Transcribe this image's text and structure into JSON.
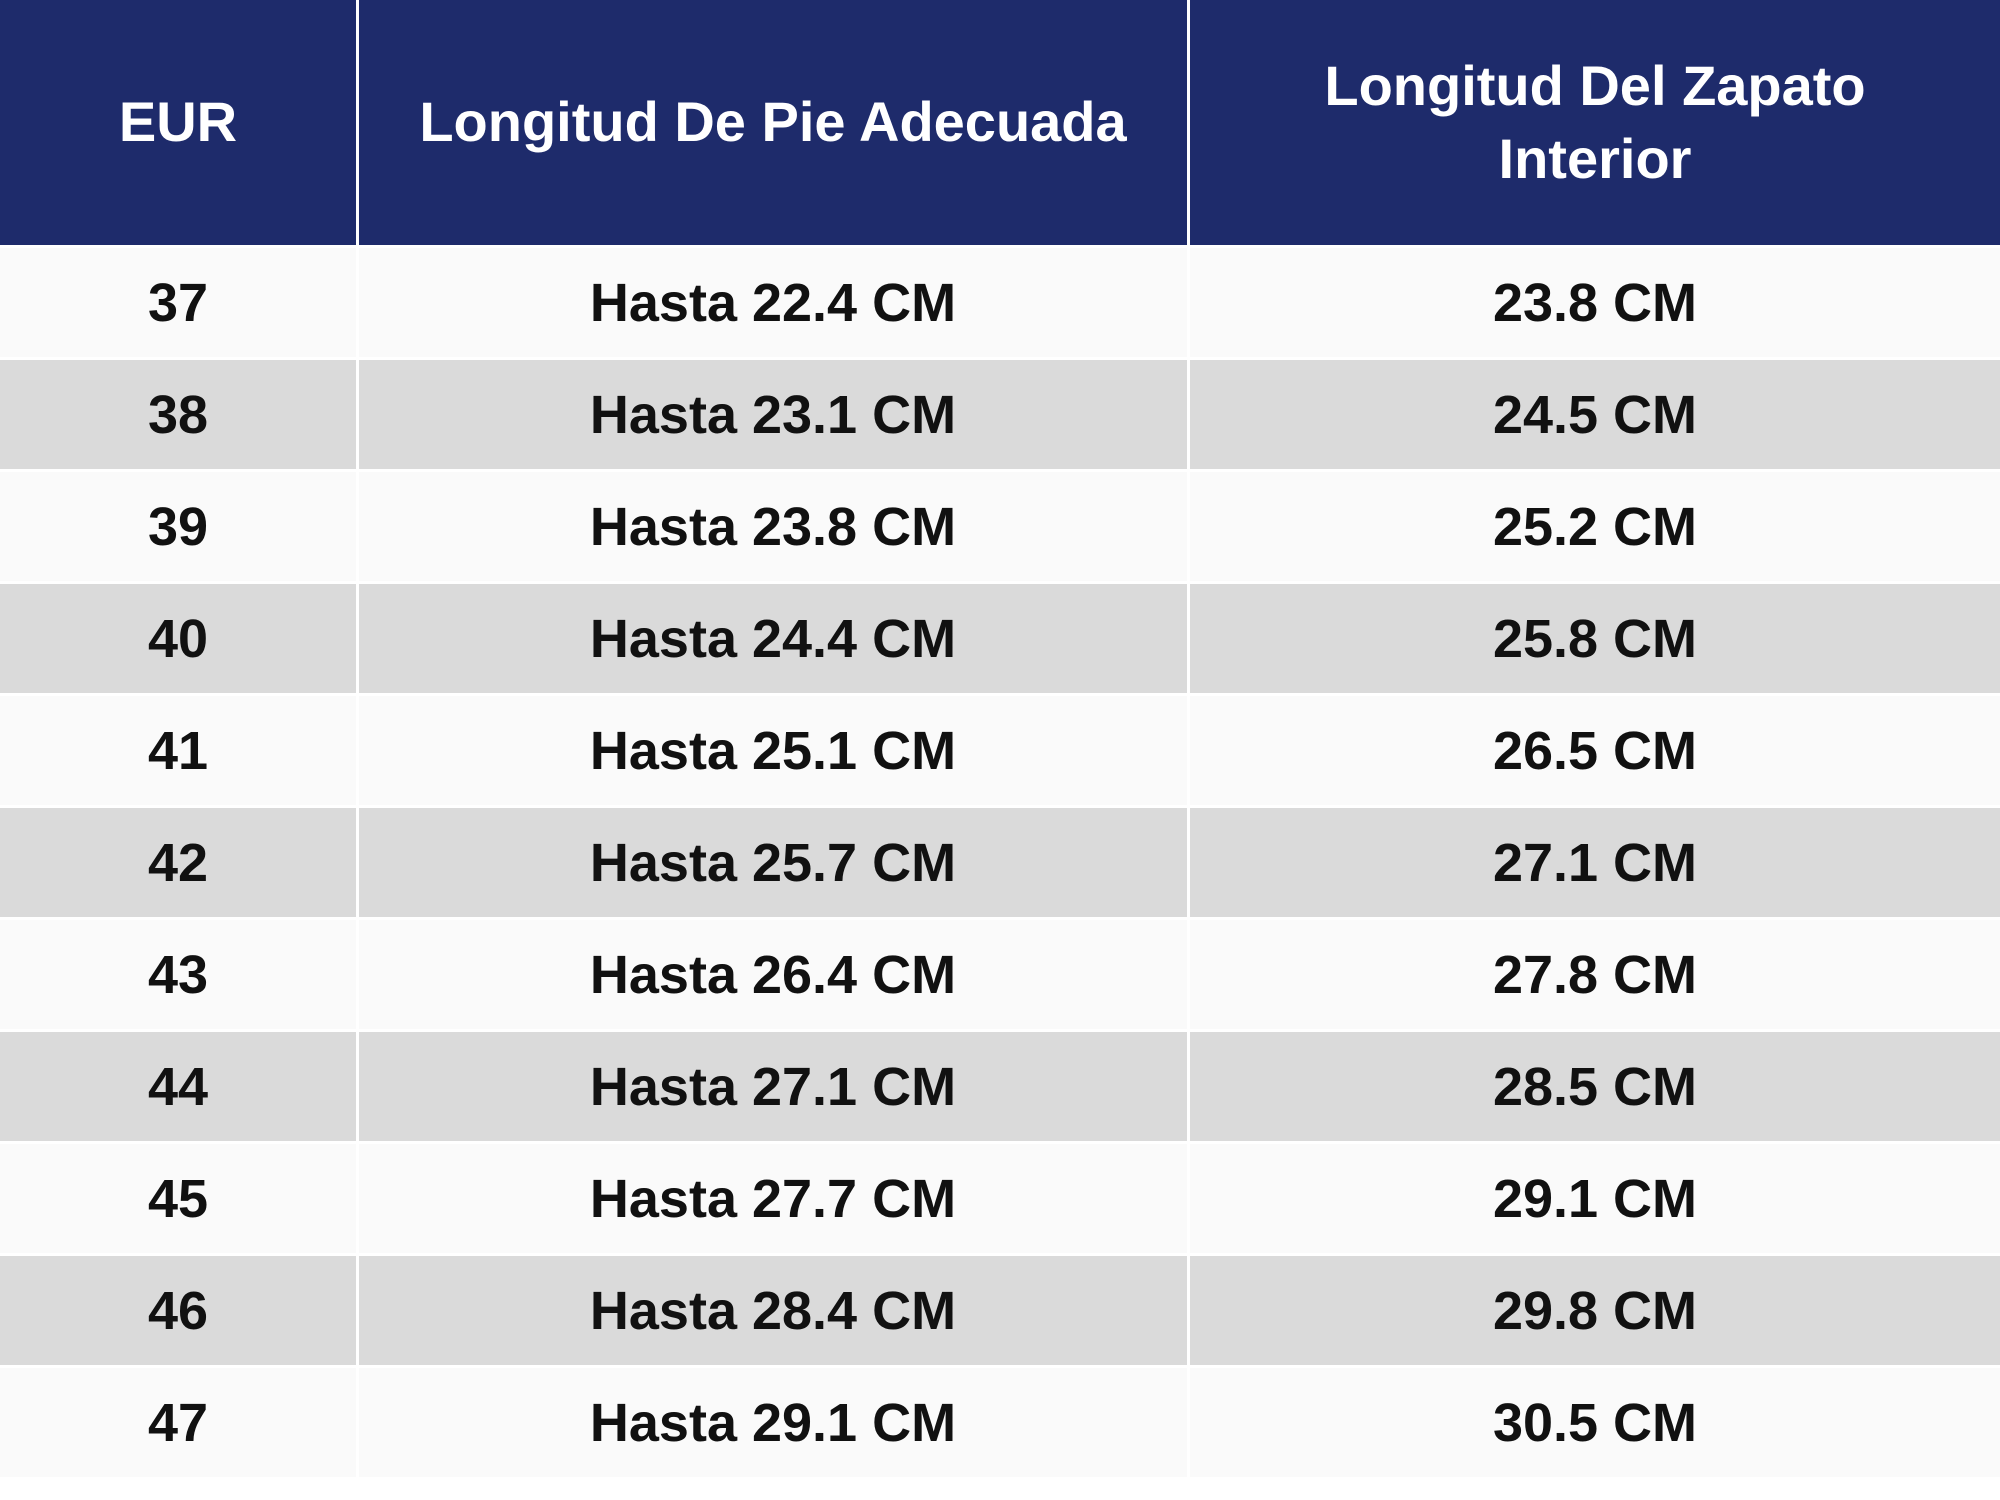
{
  "chart_data": {
    "type": "table",
    "title": "",
    "columns": [
      "EUR",
      "Longitud De Pie Adecuada",
      "Longitud Del Zapato Interior"
    ],
    "rows": [
      [
        "37",
        "Hasta 22.4 CM",
        "23.8 CM"
      ],
      [
        "38",
        "Hasta 23.1 CM",
        "24.5 CM"
      ],
      [
        "39",
        "Hasta 23.8 CM",
        "25.2 CM"
      ],
      [
        "40",
        "Hasta 24.4 CM",
        "25.8 CM"
      ],
      [
        "41",
        "Hasta 25.1 CM",
        "26.5 CM"
      ],
      [
        "42",
        "Hasta 25.7 CM",
        "27.1 CM"
      ],
      [
        "43",
        "Hasta 26.4 CM",
        "27.8 CM"
      ],
      [
        "44",
        "Hasta 27.1 CM",
        "28.5 CM"
      ],
      [
        "45",
        "Hasta 27.7 CM",
        "29.1 CM"
      ],
      [
        "46",
        "Hasta 28.4 CM",
        "29.8 CM"
      ],
      [
        "47",
        "Hasta 29.1 CM",
        "30.5 CM"
      ]
    ],
    "layout": {
      "header_position": "top",
      "row_striping": "alternating light/dark starting light",
      "alignment": "center"
    }
  },
  "colors": {
    "header_bg": "#1E2B6B",
    "header_text": "#FFFFFF",
    "row_light": "#FAFAFA",
    "row_dark": "#DADADA",
    "divider": "#FFFFFF",
    "body_text": "#111111"
  }
}
